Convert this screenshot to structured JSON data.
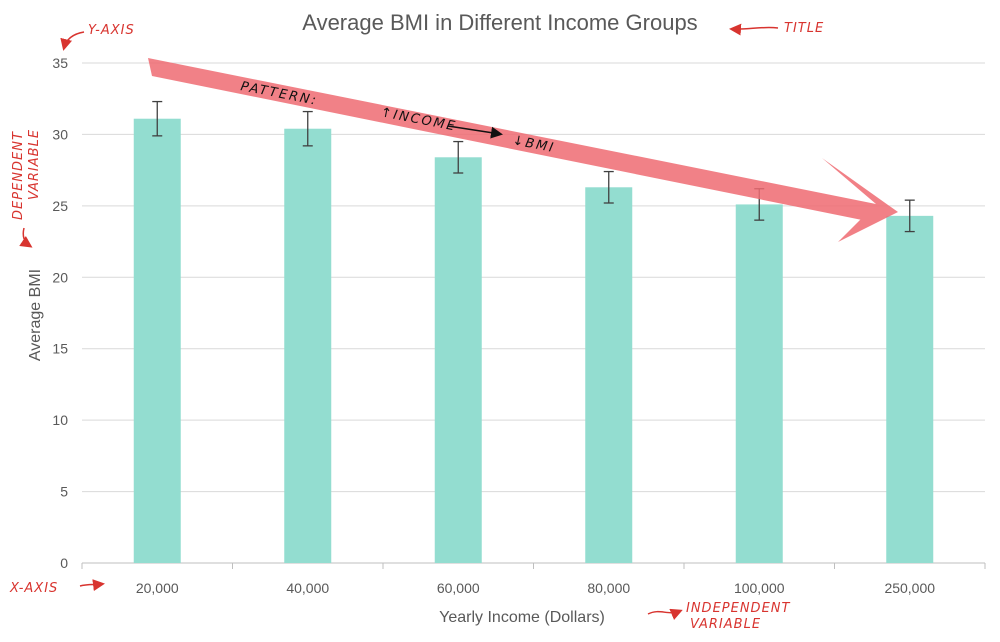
{
  "chart_data": {
    "type": "bar",
    "title": "Average BMI in Different Income Groups",
    "xlabel": "Yearly Income (Dollars)",
    "ylabel": "Average BMI",
    "categories": [
      "20,000",
      "40,000",
      "60,000",
      "80,000",
      "100,000",
      "250,000"
    ],
    "values": [
      31.1,
      30.4,
      28.4,
      26.3,
      25.1,
      24.3
    ],
    "error": [
      1.2,
      1.2,
      1.1,
      1.1,
      1.1,
      1.1
    ],
    "ylim": [
      0,
      35
    ],
    "yticks": [
      "0",
      "5",
      "10",
      "15",
      "20",
      "25",
      "30",
      "35"
    ],
    "grid": true,
    "bar_color": "#93ddd0",
    "annotations": {
      "y_axis": "Y-AXIS",
      "x_axis": "X-AXIS",
      "title": "TITLE",
      "dependent": "DEPENDENT",
      "dependent_2": "VARIABLE",
      "independent": "INDEPENDENT",
      "independent_2": "VARIABLE",
      "pattern": "PATTERN:",
      "income": "↑INCOME",
      "bmi": "↓BMI"
    },
    "annotation_color": "#d8342f",
    "arrow_color": "#ef6b72"
  }
}
